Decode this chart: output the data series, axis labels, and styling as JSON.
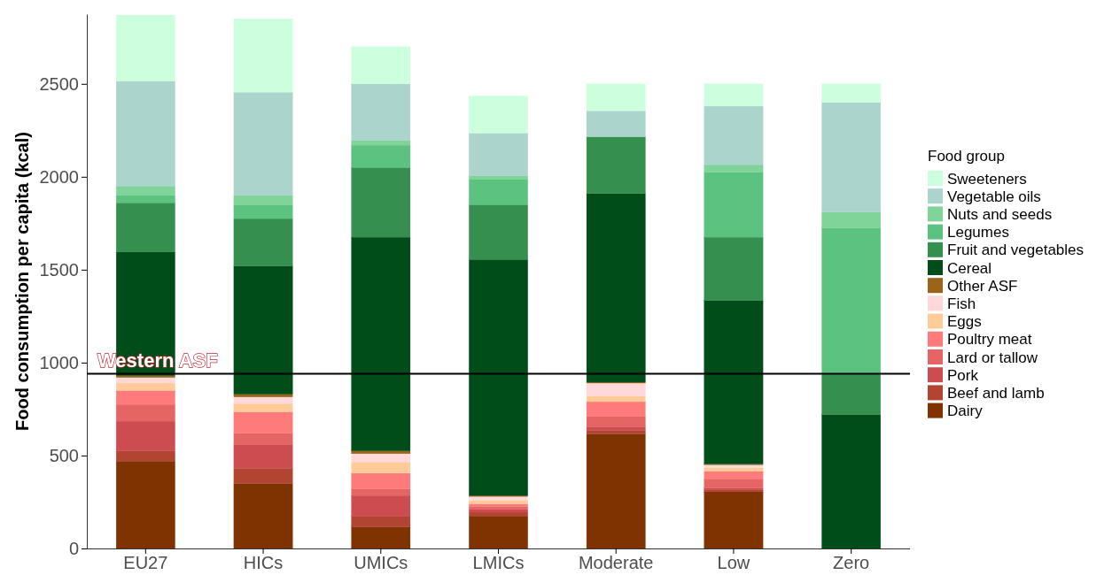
{
  "chart_data": {
    "type": "bar",
    "stacked": true,
    "ylabel": "Food consumption per capita (kcal)",
    "legend_title": "Food group",
    "legend": "right",
    "categories": [
      "EU27",
      "HICs",
      "UMICs",
      "LMICs",
      "Moderate",
      "Low",
      "Zero"
    ],
    "ylim": [
      0,
      2875
    ],
    "yticks": [
      0,
      500,
      1000,
      1500,
      2000,
      2500
    ],
    "grid": false,
    "series": [
      {
        "name": "Dairy",
        "color": "#7f3300",
        "values": [
          470,
          350,
          115,
          175,
          615,
          305,
          0
        ]
      },
      {
        "name": "Beef and lamb",
        "color": "#b24532",
        "values": [
          55,
          80,
          60,
          20,
          20,
          10,
          0
        ]
      },
      {
        "name": "Pork",
        "color": "#cc4c4f",
        "values": [
          160,
          130,
          110,
          15,
          20,
          10,
          0
        ]
      },
      {
        "name": "Lard or tallow",
        "color": "#e56565",
        "values": [
          90,
          60,
          35,
          15,
          55,
          50,
          0
        ]
      },
      {
        "name": "Poultry meat",
        "color": "#ff7a7a",
        "values": [
          75,
          115,
          85,
          15,
          80,
          40,
          0
        ]
      },
      {
        "name": "Eggs",
        "color": "#ffcc99",
        "values": [
          40,
          45,
          60,
          20,
          30,
          20,
          0
        ]
      },
      {
        "name": "Fish",
        "color": "#ffd9d9",
        "values": [
          30,
          35,
          45,
          20,
          70,
          15,
          0
        ]
      },
      {
        "name": "Other ASF",
        "color": "#9a6518",
        "values": [
          10,
          15,
          15,
          5,
          5,
          5,
          0
        ]
      },
      {
        "name": "Cereal",
        "color": "#004d1a",
        "values": [
          665,
          690,
          1150,
          1270,
          1015,
          880,
          720
        ]
      },
      {
        "name": "Fruit and vegetables",
        "color": "#358f4f",
        "values": [
          265,
          255,
          375,
          295,
          305,
          340,
          225
        ]
      },
      {
        "name": "Legumes",
        "color": "#5cc280",
        "values": [
          40,
          75,
          120,
          135,
          0,
          350,
          780
        ]
      },
      {
        "name": "Nuts and seeds",
        "color": "#80d499",
        "values": [
          50,
          50,
          25,
          20,
          0,
          40,
          85
        ]
      },
      {
        "name": "Vegetable oils",
        "color": "#abd4cc",
        "values": [
          565,
          555,
          305,
          230,
          140,
          315,
          590
        ]
      },
      {
        "name": "Sweeteners",
        "color": "#ccffdd",
        "values": [
          355,
          395,
          200,
          200,
          145,
          120,
          100
        ]
      }
    ],
    "ref_lines": [
      {
        "axis": "y",
        "value": 940,
        "label": "Western ASF",
        "color": "#000000"
      }
    ]
  }
}
